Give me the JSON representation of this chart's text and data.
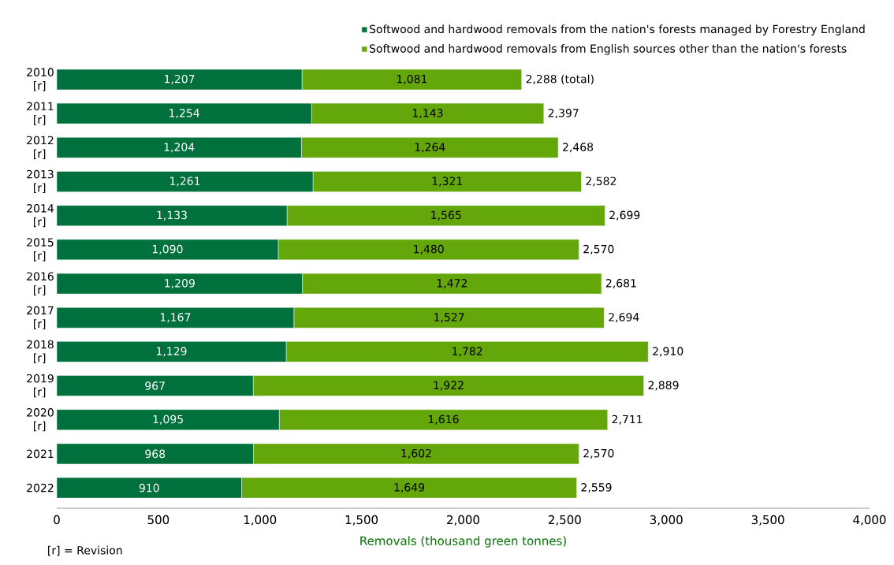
{
  "chart_data": {
    "type": "bar",
    "orientation": "horizontal",
    "stacked": true,
    "categories": [
      "2010 [r]",
      "2011 [r]",
      "2012 [r]",
      "2013 [r]",
      "2014 [r]",
      "2015 [r]",
      "2016 [r]",
      "2017 [r]",
      "2018 [r]",
      "2019 [r]",
      "2020 [r]",
      "2021",
      "2022"
    ],
    "series": [
      {
        "name": "Softwood and hardwood removals from the nation's forests managed by Forestry England",
        "color": "#00703c",
        "values": [
          1207,
          1254,
          1204,
          1261,
          1133,
          1090,
          1209,
          1167,
          1129,
          967,
          1095,
          968,
          910
        ],
        "value_labels": [
          "1,207",
          "1,254",
          "1,204",
          "1,261",
          "1,133",
          "1,090",
          "1,209",
          "1,167",
          "1,129",
          "967",
          "1,095",
          "968",
          "910"
        ]
      },
      {
        "name": "Softwood and hardwood removals from English sources other than the nation's forests",
        "color": "#64a70b",
        "values": [
          1081,
          1143,
          1264,
          1321,
          1565,
          1480,
          1472,
          1527,
          1782,
          1922,
          1616,
          1602,
          1649
        ],
        "value_labels": [
          "1,081",
          "1,143",
          "1,264",
          "1,321",
          "1,565",
          "1,480",
          "1,472",
          "1,527",
          "1,782",
          "1,922",
          "1,616",
          "1,602",
          "1,649"
        ]
      }
    ],
    "totals": [
      "2,288 (total)",
      "2,397",
      "2,468",
      "2,582",
      "2,699",
      "2,570",
      "2,681",
      "2,694",
      "2,910",
      "2,889",
      "2,711",
      "2,570",
      "2,559"
    ],
    "xlim": [
      0,
      4000
    ],
    "xticks": [
      0,
      500,
      {
        "value": 1000,
        "label": "1,000"
      },
      {
        "value": 1500,
        "label": "1,500"
      },
      {
        "value": 2000,
        "label": "2,000"
      },
      {
        "value": 2500,
        "label": "2,500"
      },
      {
        "value": 3000,
        "label": "3,000"
      },
      {
        "value": 3500,
        "label": "3,500"
      },
      {
        "value": 4000,
        "label": "4,000"
      }
    ],
    "xlabel": "Removals (thousand green tonnes)",
    "legend": "top",
    "annotations": [
      "[r] = Revision"
    ]
  }
}
